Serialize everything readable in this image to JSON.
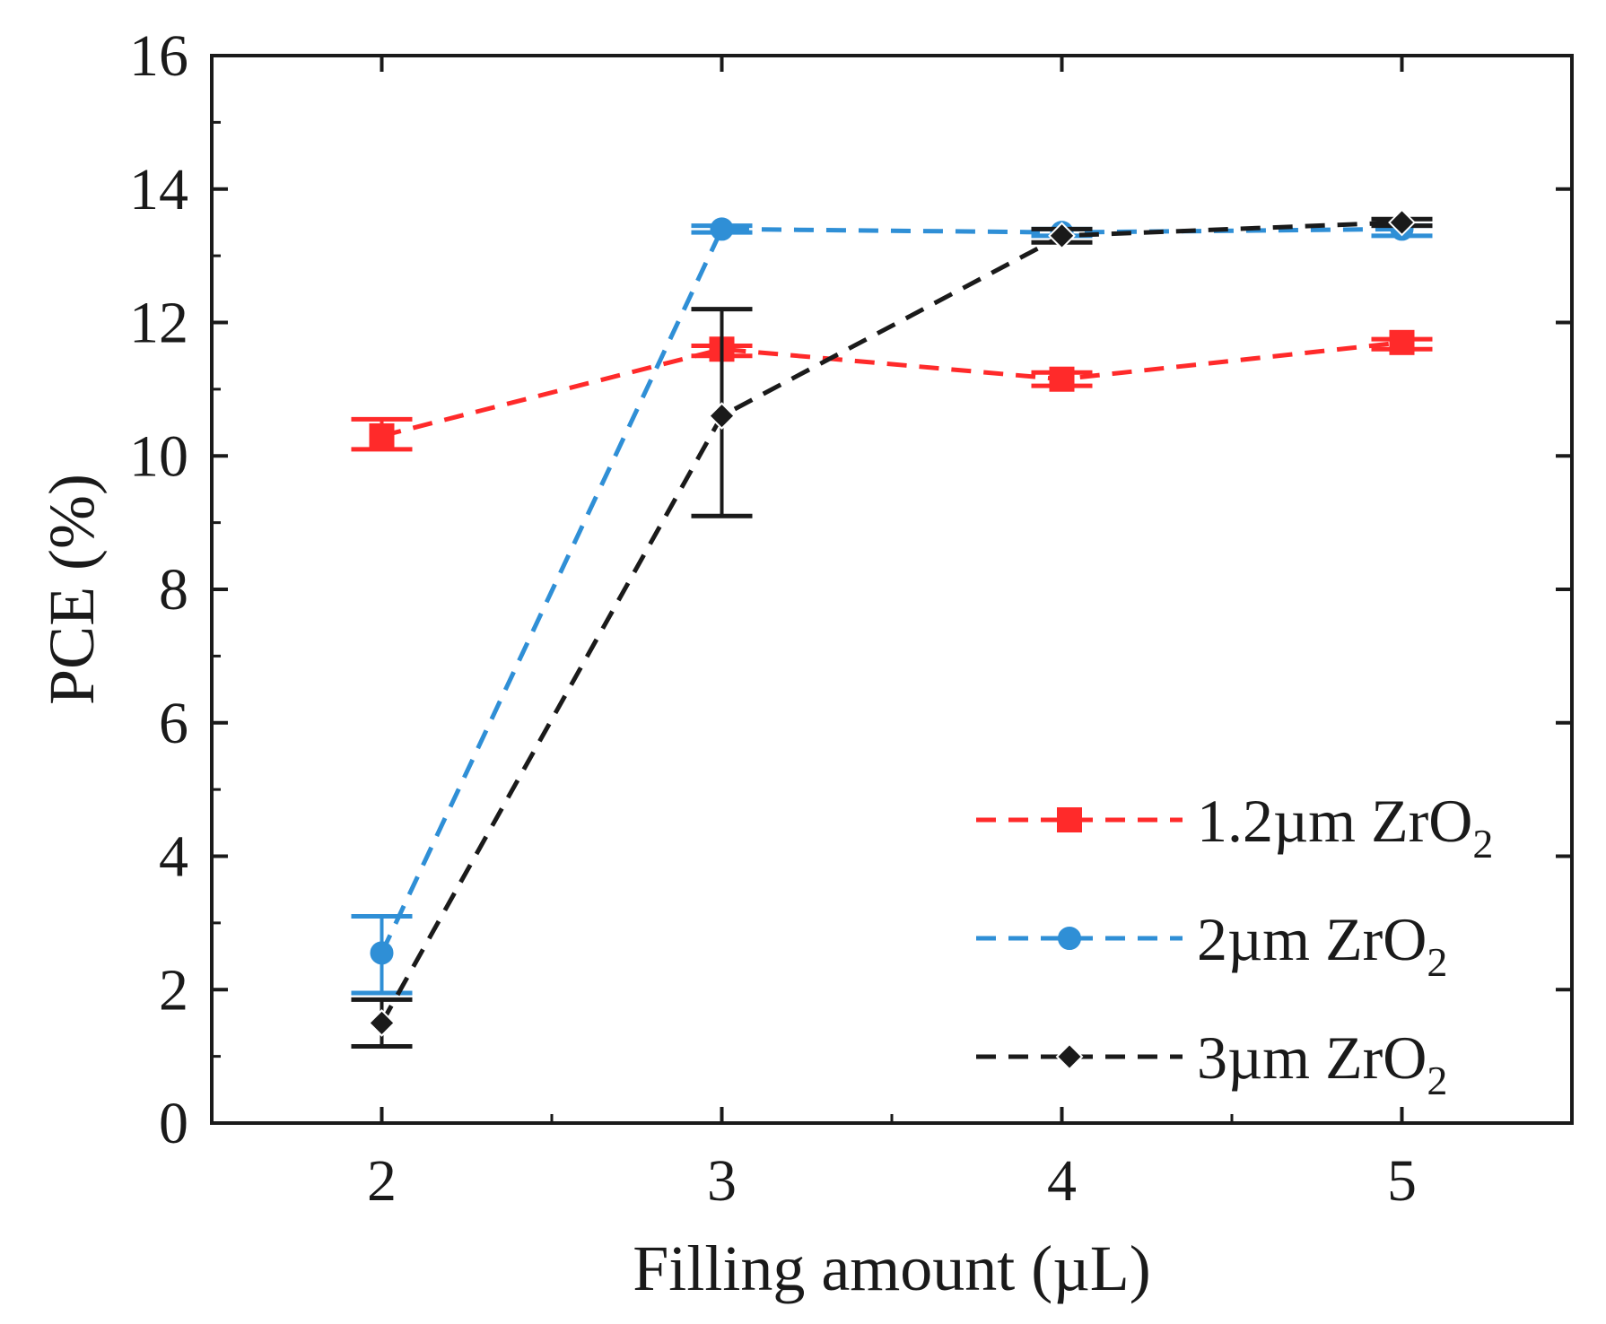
{
  "chart_data": {
    "type": "line",
    "xlabel": "Filling amount (µL)",
    "ylabel": "PCE (%)",
    "xlim": [
      1.5,
      5.5
    ],
    "ylim": [
      0,
      16
    ],
    "x_ticks": [
      2,
      3,
      4,
      5
    ],
    "y_ticks": [
      0,
      2,
      4,
      6,
      8,
      10,
      12,
      14,
      16
    ],
    "x_tick_labels": [
      "2",
      "3",
      "4",
      "5"
    ],
    "y_tick_labels": [
      "0",
      "2",
      "4",
      "6",
      "8",
      "10",
      "12",
      "14",
      "16"
    ],
    "legend_position": "lower-right",
    "series": [
      {
        "name": "1.2µm ZrO",
        "subscript": "2",
        "color": "#ff2a2a",
        "marker": "square",
        "line_style": "dashed",
        "x": [
          2,
          3,
          4,
          5
        ],
        "values": [
          10.3,
          11.6,
          11.15,
          11.7
        ],
        "err_low": [
          10.1,
          11.5,
          11.05,
          11.6
        ],
        "err_high": [
          10.55,
          11.65,
          11.25,
          11.75
        ]
      },
      {
        "name": "2µm ZrO",
        "subscript": "2",
        "color": "#2f8fd6",
        "marker": "circle",
        "line_style": "dashed",
        "x": [
          2,
          3,
          4,
          5
        ],
        "values": [
          2.55,
          13.4,
          13.35,
          13.4
        ],
        "err_low": [
          1.95,
          13.35,
          13.3,
          13.3
        ],
        "err_high": [
          3.1,
          13.45,
          13.4,
          13.45
        ]
      },
      {
        "name": "3µm ZrO",
        "subscript": "2",
        "color": "#1a1a1a",
        "marker": "diamond",
        "line_style": "dashed",
        "x": [
          2,
          3,
          4,
          5
        ],
        "values": [
          1.5,
          10.6,
          13.3,
          13.5
        ],
        "err_low": [
          1.15,
          9.1,
          13.2,
          13.45
        ],
        "err_high": [
          1.85,
          12.2,
          13.4,
          13.55
        ]
      }
    ]
  }
}
